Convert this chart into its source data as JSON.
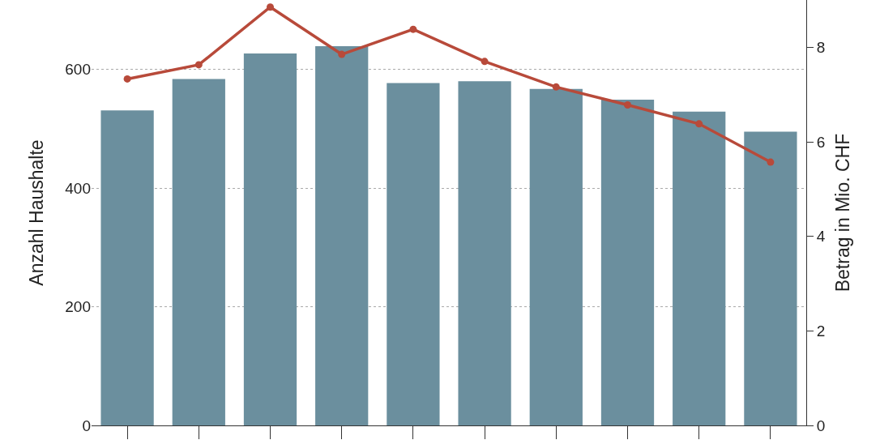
{
  "chart_data": {
    "type": "bar",
    "ylabel": "Anzahl Haushalte",
    "y2label": "Betrag in Mio. CHF",
    "categories": [
      null,
      null,
      null,
      null,
      null,
      null,
      null,
      null,
      null,
      null
    ],
    "series": [
      {
        "color": "#6b8f9e",
        "values": [
          531,
          584,
          627,
          639,
          577,
          580,
          567,
          549,
          529,
          495
        ]
      },
      {
        "type": "line",
        "axis": "y2",
        "color": "#b84a3a",
        "marker": "circle",
        "values": [
          7.33,
          7.63,
          8.85,
          7.85,
          8.38,
          7.7,
          7.16,
          6.78,
          6.38,
          5.57
        ]
      }
    ],
    "ylim": [
      0,
      717
    ],
    "yticks": [
      0,
      200,
      400,
      600
    ],
    "y2lim": [
      0,
      9
    ],
    "y2ticks": [
      0,
      2,
      4,
      6,
      8
    ],
    "grid": "y",
    "tick_labels": "y",
    "legend": false
  }
}
